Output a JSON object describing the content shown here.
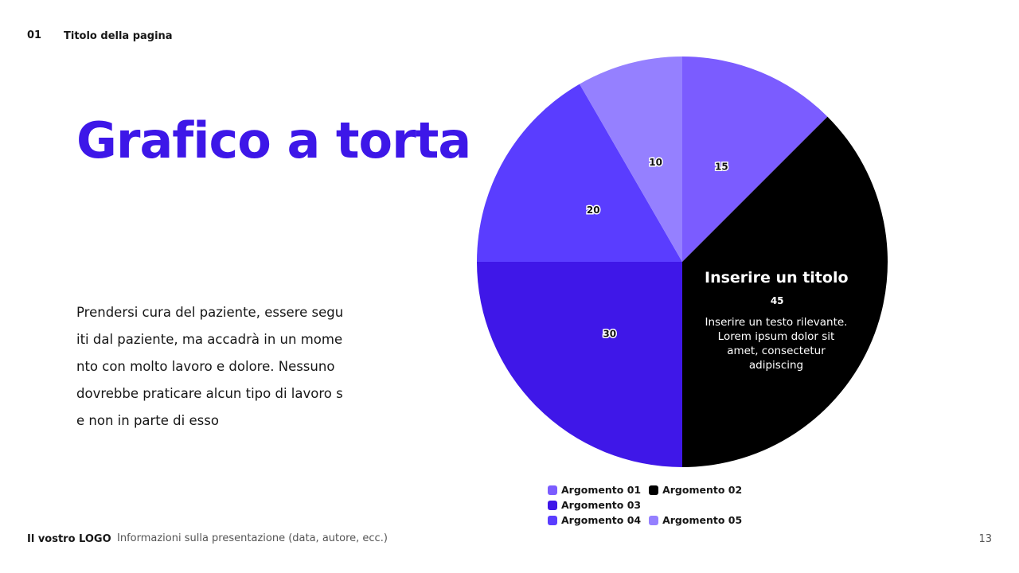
{
  "header": {
    "number": "01",
    "page_title": "Titolo della pagina"
  },
  "title": "Grafico a torta",
  "body_lines": [
    "Prendersi cura del paziente, essere segu",
    "iti dal paziente, ma accadrà in un mome",
    "nto con molto lavoro e dolore. Nessuno",
    "dovrebbe praticare alcun tipo di lavoro s",
    "e non in parte di esso"
  ],
  "footer": {
    "logo": "Il vostro LOGO",
    "info": "Informazioni sulla presentazione (data, autore, ecc.)",
    "page": "13"
  },
  "annotation": {
    "title": "Inserire un titolo",
    "body": "Inserire un testo rilevante. Lorem ipsum dolor sit amet, consectetur adipiscing"
  },
  "chart_data": {
    "type": "pie",
    "start": "top",
    "direction": "clockwise",
    "categories": [
      "Argomento 01",
      "Argomento 02",
      "Argomento 03",
      "Argomento 04",
      "Argomento 05"
    ],
    "values": [
      15,
      45,
      30,
      20,
      10
    ],
    "colors": [
      "#7b5cff",
      "#000000",
      "#3f17e8",
      "#5a3dff",
      "#9580ff"
    ],
    "data_labels": [
      "15",
      "45",
      "30",
      "20",
      "10"
    ],
    "legend": "bottom"
  }
}
